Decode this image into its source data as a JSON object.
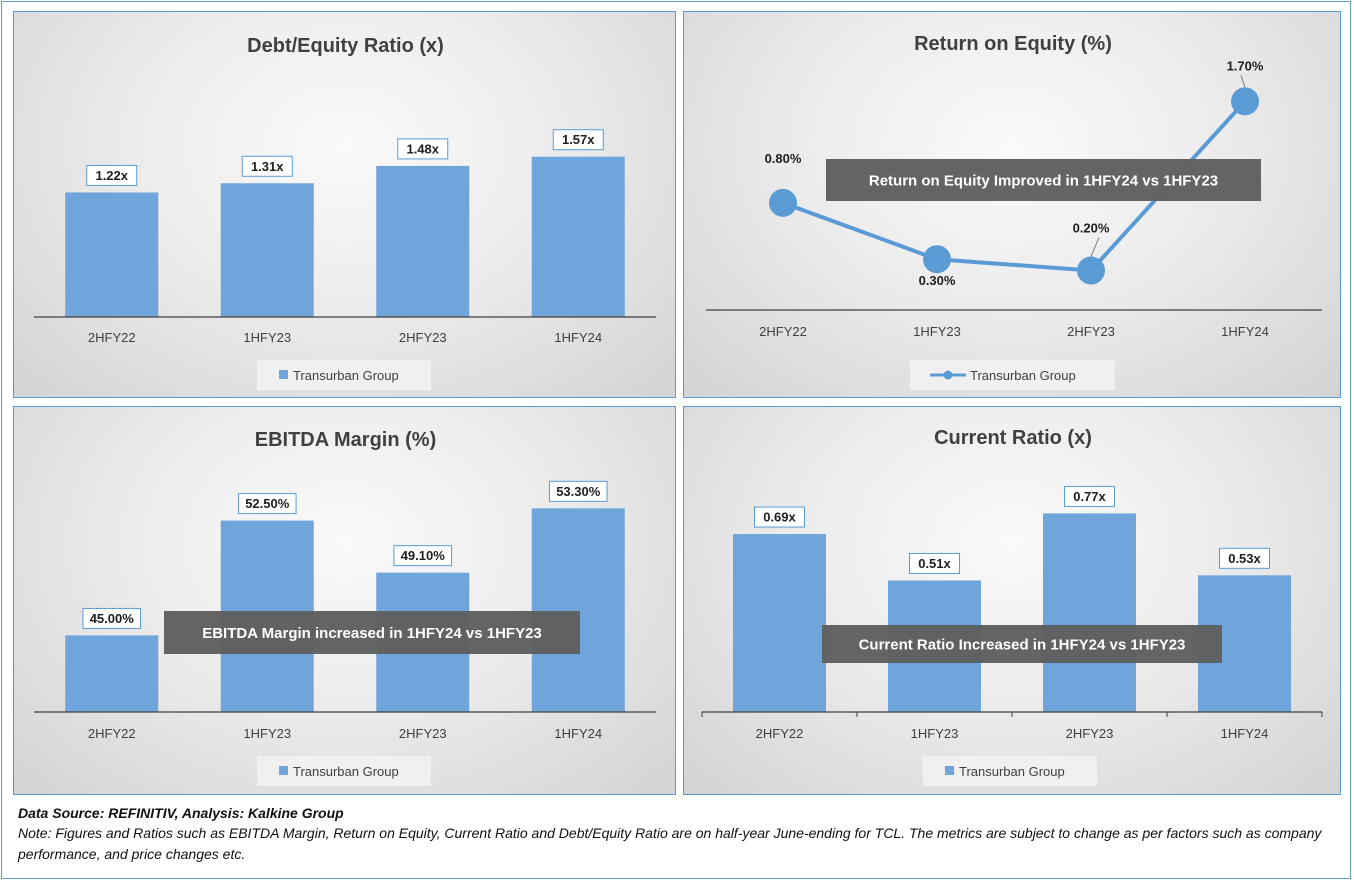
{
  "chart_data": [
    {
      "id": "debt_equity",
      "type": "bar",
      "title": "Debt/Equity Ratio (x)",
      "categories": [
        "2HFY22",
        "1HFY23",
        "2HFY23",
        "1HFY24"
      ],
      "series": [
        {
          "name": "Transurban Group",
          "values": [
            1.22,
            1.31,
            1.48,
            1.57
          ]
        }
      ],
      "data_labels": [
        "1.22x",
        "1.31x",
        "1.48x",
        "1.57x"
      ],
      "ylim": [
        0,
        2.4
      ],
      "legend": "bottom",
      "annotation": ""
    },
    {
      "id": "roe",
      "type": "line",
      "title": "Return on Equity (%)",
      "categories": [
        "2HFY22",
        "1HFY23",
        "2HFY23",
        "1HFY24"
      ],
      "series": [
        {
          "name": "Transurban Group",
          "values": [
            0.8,
            0.3,
            0.2,
            1.7
          ]
        }
      ],
      "data_labels": [
        "0.80%",
        "0.30%",
        "0.20%",
        "1.70%"
      ],
      "ylim": [
        -0.15,
        1.96
      ],
      "legend": "bottom",
      "annotation": "Return on Equity Improved in 1HFY24 vs 1HFY23"
    },
    {
      "id": "ebitda",
      "type": "bar",
      "title": "EBITDA Margin (%)",
      "categories": [
        "2HFY22",
        "1HFY23",
        "2HFY23",
        "1HFY24"
      ],
      "series": [
        {
          "name": "Transurban Group",
          "values": [
            45.0,
            52.5,
            49.1,
            53.3
          ]
        }
      ],
      "data_labels": [
        "45.00%",
        "52.50%",
        "49.10%",
        "53.30%"
      ],
      "ylim": [
        40,
        56
      ],
      "legend": "bottom",
      "annotation": "EBITDA Margin increased in 1HFY24 vs 1HFY23"
    },
    {
      "id": "current_ratio",
      "type": "bar",
      "title": "Current Ratio (x)",
      "categories": [
        "2HFY22",
        "1HFY23",
        "2HFY23",
        "1HFY24"
      ],
      "series": [
        {
          "name": "Transurban Group",
          "values": [
            0.69,
            0.51,
            0.77,
            0.53
          ]
        }
      ],
      "data_labels": [
        "0.69x",
        "0.51x",
        "0.77x",
        "0.53x"
      ],
      "ylim": [
        0,
        0.95
      ],
      "legend": "bottom",
      "annotation": "Current Ratio Increased in 1HFY24 vs 1HFY23"
    }
  ],
  "colors": {
    "bar": "#6fa5da",
    "line": "#5b9bd5",
    "annotation_bg": "#5f5f5f",
    "label_border": "#5b9bd5"
  },
  "footer": {
    "source": "Data Source: REFINITIV, Analysis: Kalkine Group",
    "note": "Note: Figures and Ratios such as EBITDA Margin, Return on Equity, Current Ratio and Debt/Equity Ratio are on half-year June-ending for TCL. The metrics are subject to change as per factors such as company performance, and price changes etc."
  }
}
